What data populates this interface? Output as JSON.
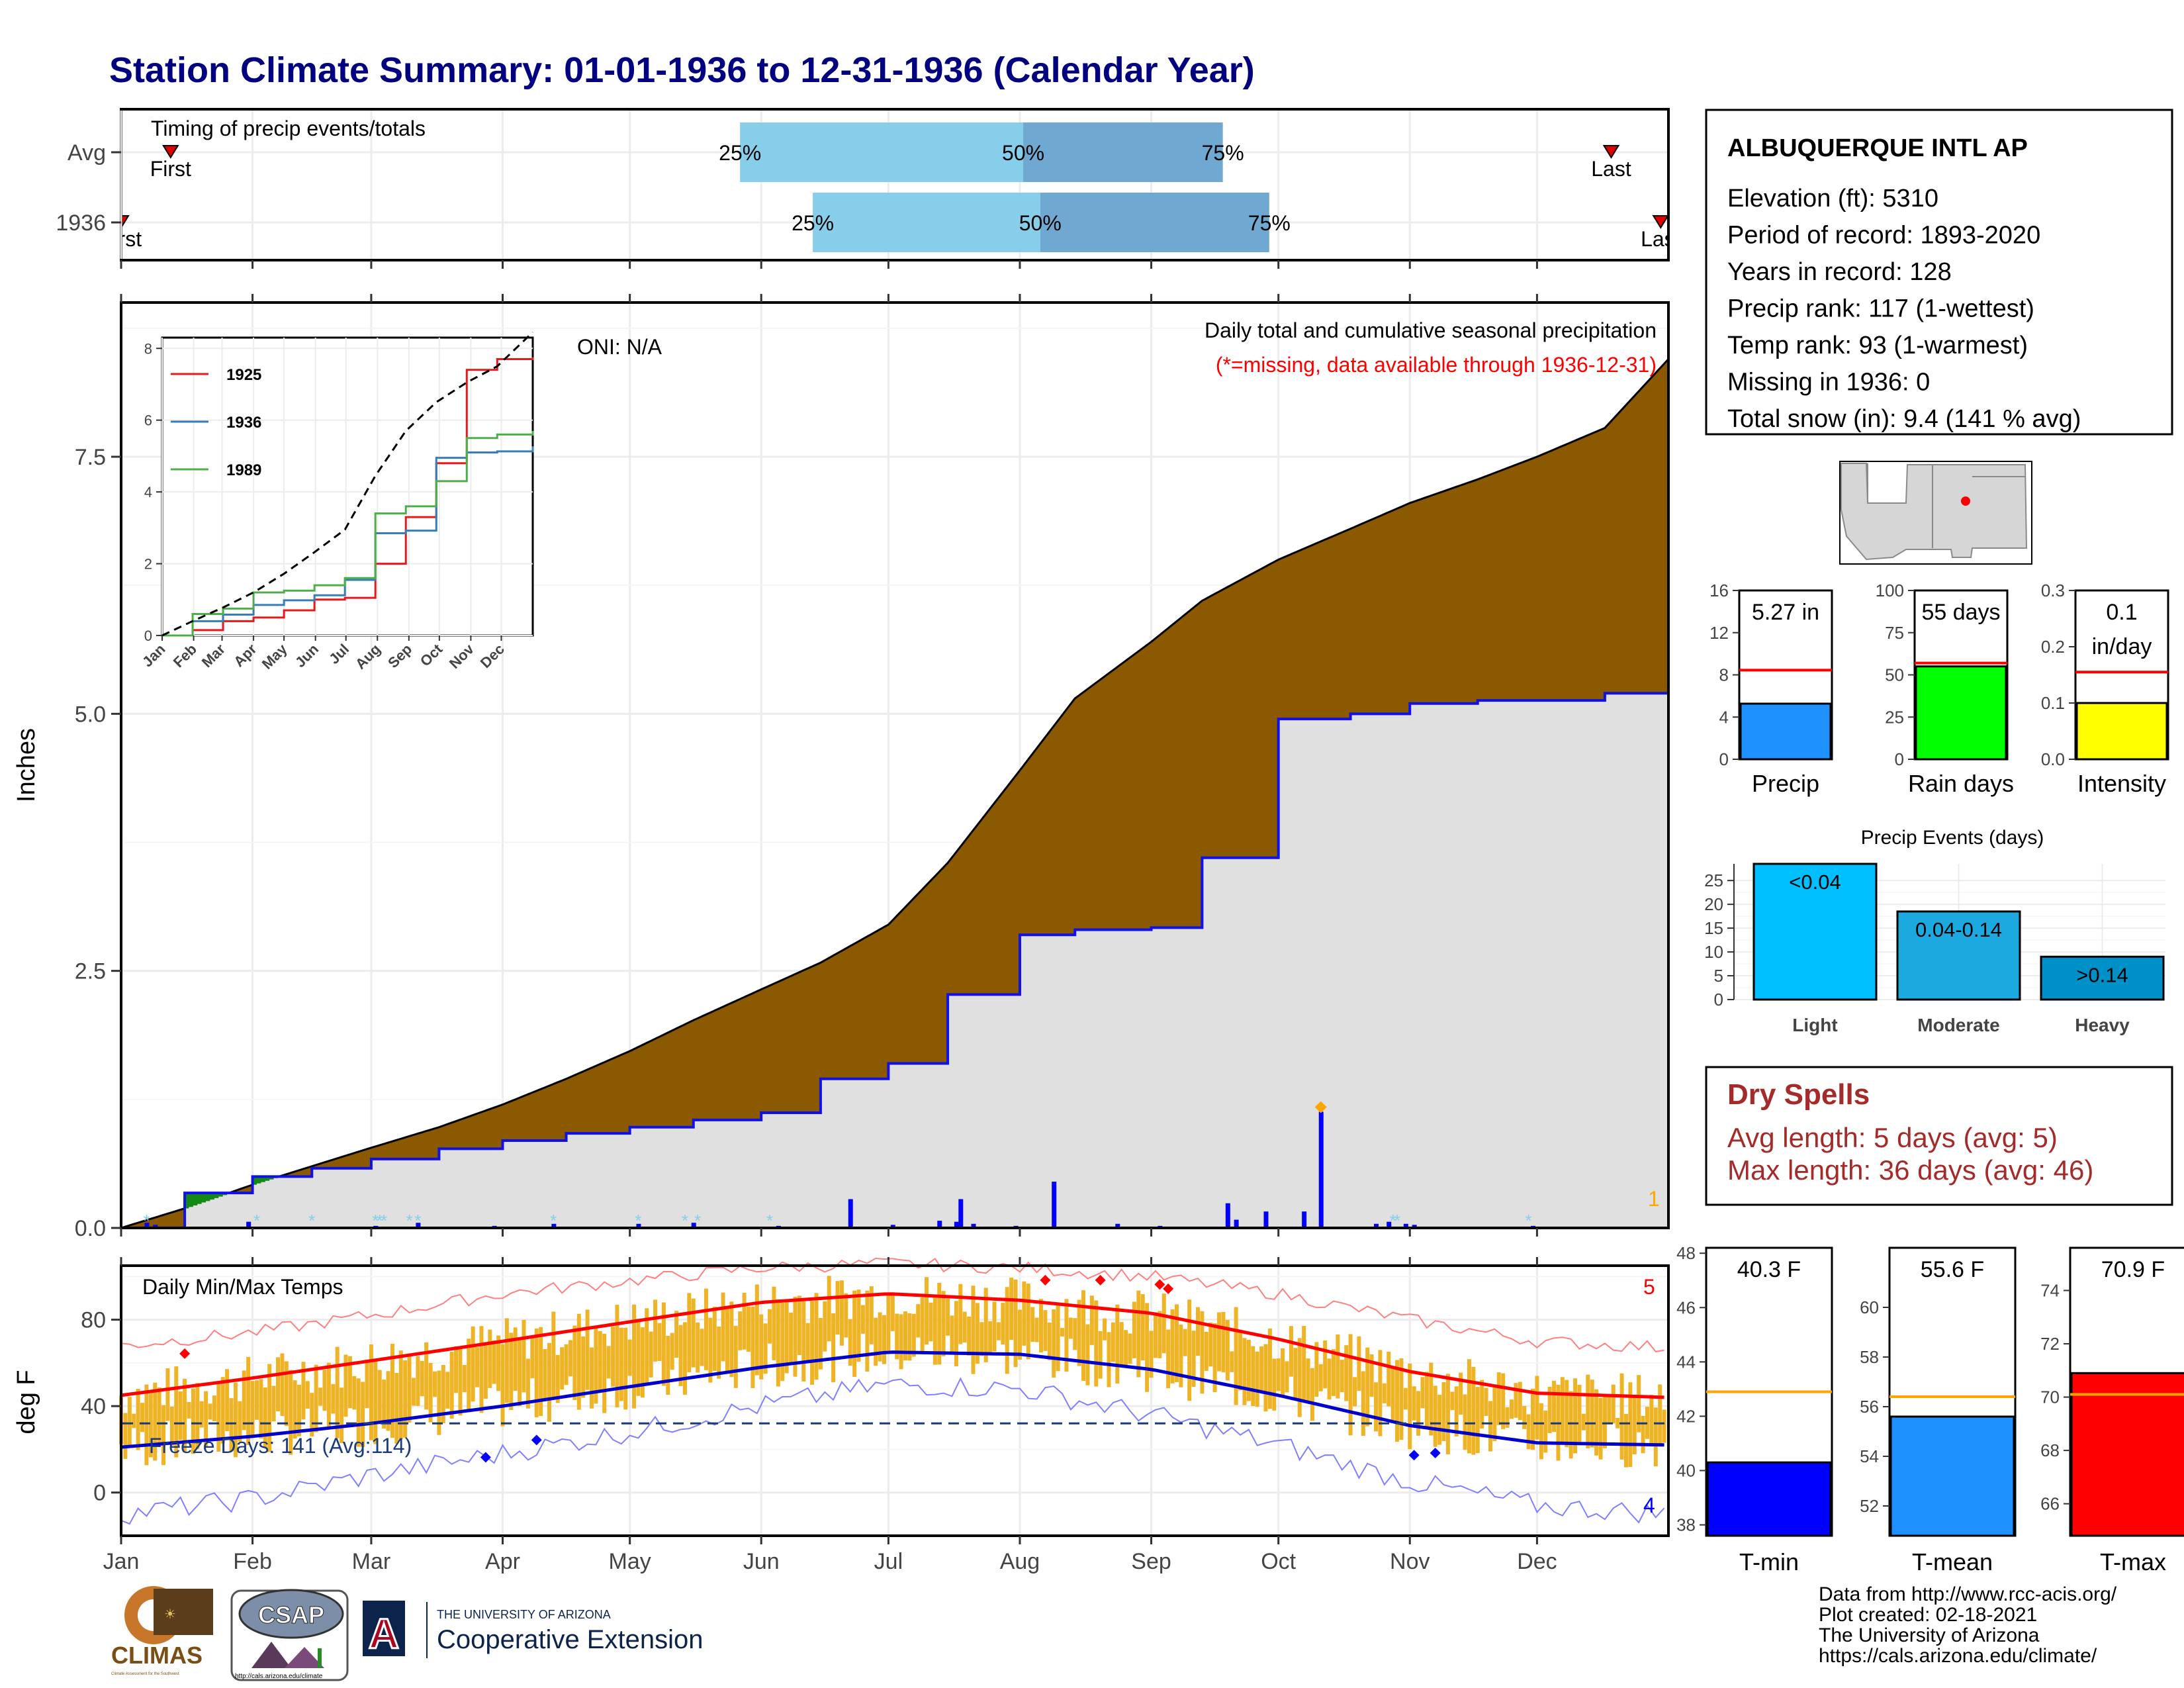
{
  "title": "Station Climate Summary: 01-01-1936 to 12-31-1936 (Calendar Year)",
  "colors": {
    "title": "#000080",
    "cum": "#8B5A00",
    "normal": "#e0e0e0",
    "green": "#138a13",
    "line": "#1010e8",
    "dryspell": "#a02828"
  },
  "timing": {
    "label": "Timing of precip events/totals",
    "rows": [
      {
        "name": "Avg",
        "first": 0.032,
        "p25": 0.4,
        "p50": 0.583,
        "p75": 0.712,
        "last": 0.963,
        "first_label": "First",
        "last_label": "Last"
      },
      {
        "name": "1936",
        "first": 0.0,
        "p25": 0.447,
        "p50": 0.594,
        "p75": 0.742,
        "last": 0.995,
        "first_label": "First",
        "last_label": "Last"
      }
    ],
    "pct_labels": [
      "25%",
      "50%",
      "75%"
    ]
  },
  "months": [
    "Jan",
    "Feb",
    "Mar",
    "Apr",
    "May",
    "Jun",
    "Jul",
    "Aug",
    "Sep",
    "Oct",
    "Nov",
    "Dec"
  ],
  "precip_panel": {
    "ylabel": "Inches",
    "yticks": [
      "0.0",
      "2.5",
      "5.0",
      "7.5"
    ],
    "ylim": [
      0,
      9.0
    ],
    "oni": "ONI: N/A",
    "heading": "Daily total and cumulative seasonal precipitation",
    "missing_note": "(*=missing, data available through 1936-12-31)",
    "corner_count": "1"
  },
  "chart_data": [
    {
      "type": "area",
      "title": "Daily total and cumulative seasonal precipitation",
      "ylabel": "Inches",
      "x_day": [
        0,
        15,
        31,
        45,
        59,
        75,
        90,
        105,
        120,
        135,
        151,
        165,
        181,
        195,
        212,
        225,
        243,
        255,
        273,
        290,
        304,
        320,
        334,
        350,
        365
      ],
      "series": [
        {
          "name": "normal cumulative",
          "values": [
            0,
            0.19,
            0.42,
            0.6,
            0.78,
            0.98,
            1.2,
            1.45,
            1.72,
            2.02,
            2.32,
            2.58,
            2.95,
            3.55,
            4.45,
            5.15,
            5.7,
            6.1,
            6.5,
            6.8,
            7.05,
            7.28,
            7.5,
            7.78,
            8.45
          ]
        },
        {
          "name": "1936 cumulative",
          "values": [
            0,
            0.34,
            0.5,
            0.58,
            0.67,
            0.77,
            0.85,
            0.92,
            0.98,
            1.05,
            1.12,
            1.45,
            1.6,
            2.27,
            2.85,
            2.9,
            2.92,
            3.6,
            4.95,
            5.0,
            5.1,
            5.13,
            5.13,
            5.2,
            5.27
          ]
        }
      ]
    },
    {
      "type": "line",
      "title": "",
      "series": [
        {
          "name": "1925",
          "x_day": [
            0,
            30,
            60,
            90,
            120,
            150,
            180,
            210,
            240,
            270,
            300,
            330,
            365
          ],
          "values": [
            0,
            0.15,
            0.4,
            0.5,
            0.7,
            1.0,
            1.05,
            2.0,
            3.3,
            4.8,
            7.4,
            7.7,
            7.75
          ]
        },
        {
          "name": "1936",
          "x_day": [
            0,
            30,
            60,
            90,
            120,
            150,
            180,
            210,
            240,
            270,
            300,
            330,
            365
          ],
          "values": [
            0,
            0.4,
            0.58,
            0.85,
            0.98,
            1.12,
            1.55,
            2.85,
            2.92,
            4.95,
            5.1,
            5.13,
            5.27
          ]
        },
        {
          "name": "1989",
          "x_day": [
            0,
            30,
            60,
            90,
            120,
            150,
            180,
            210,
            240,
            270,
            300,
            330,
            365
          ],
          "values": [
            0,
            0.6,
            0.75,
            1.2,
            1.25,
            1.4,
            1.6,
            3.4,
            3.6,
            4.3,
            5.5,
            5.6,
            5.7
          ]
        },
        {
          "name": "avg",
          "x_day": [
            0,
            30,
            60,
            90,
            120,
            150,
            180,
            210,
            240,
            270,
            300,
            330,
            365
          ],
          "values": [
            0,
            0.4,
            0.78,
            1.2,
            1.72,
            2.32,
            2.95,
            4.45,
            5.7,
            6.5,
            7.05,
            7.5,
            8.45
          ]
        }
      ],
      "yticks": [
        "0",
        "2",
        "4",
        "6",
        "8"
      ],
      "ylim": [
        0,
        8.3
      ]
    },
    {
      "type": "bar",
      "title": "",
      "series": [
        {
          "name": "1936 daily precip",
          "x_day": [
            6,
            8,
            30,
            60,
            70,
            88,
            102,
            122,
            135,
            155,
            172,
            182,
            193,
            197,
            198,
            201,
            211,
            220,
            235,
            245,
            261,
            263,
            270,
            279,
            283,
            296,
            299,
            303,
            305,
            333
          ],
          "values": [
            0.05,
            0.03,
            0.06,
            0.02,
            0.05,
            0.02,
            0.04,
            0.04,
            0.05,
            0.02,
            0.28,
            0.03,
            0.07,
            0.06,
            0.28,
            0.04,
            0.02,
            0.45,
            0.04,
            0.02,
            0.24,
            0.08,
            0.16,
            0.16,
            1.13,
            0.04,
            0.06,
            0.04,
            0.03,
            0.02
          ]
        }
      ]
    },
    {
      "type": "line",
      "title": "Daily Min/Max Temps",
      "ylabel": "deg F",
      "yticks": [
        "0",
        "40",
        "80"
      ],
      "ylim": [
        -20,
        105
      ],
      "x_day": [
        0,
        31,
        59,
        90,
        120,
        151,
        181,
        212,
        243,
        273,
        304,
        334,
        365
      ],
      "series": [
        {
          "name": "Normal max",
          "values": [
            45,
            53,
            61,
            70,
            79,
            88,
            92,
            89,
            83,
            71,
            56,
            46,
            44
          ]
        },
        {
          "name": "Normal min",
          "values": [
            21,
            26,
            32,
            40,
            49,
            58,
            65,
            64,
            57,
            45,
            31,
            23,
            22
          ]
        },
        {
          "name": "Record max",
          "values": [
            68,
            74,
            82,
            92,
            98,
            104,
            106,
            104,
            100,
            92,
            80,
            70,
            67
          ]
        },
        {
          "name": "Record min",
          "values": [
            -10,
            -3,
            8,
            18,
            28,
            40,
            50,
            48,
            36,
            22,
            5,
            -6,
            -10
          ]
        }
      ],
      "freeze_days": "Freeze Days: 141 (Avg:114)",
      "freeze_line": 32,
      "record_high_count": "5",
      "record_low_count": "4"
    },
    {
      "type": "bar",
      "title": "",
      "categories": [
        "Precip"
      ],
      "values": [
        5.27
      ],
      "avg": 8.45,
      "ylim": [
        0,
        16
      ],
      "yticks": [
        "0",
        "4",
        "8",
        "12",
        "16"
      ],
      "value_label": "5.27 in",
      "color": "#1e90ff"
    },
    {
      "type": "bar",
      "title": "",
      "categories": [
        "Rain days"
      ],
      "values": [
        55
      ],
      "avg": 57,
      "ylim": [
        0,
        100
      ],
      "yticks": [
        "0",
        "25",
        "50",
        "75",
        "100"
      ],
      "value_label": "55 days",
      "color": "#00ff00"
    },
    {
      "type": "bar",
      "title": "",
      "categories": [
        "Intensity"
      ],
      "values": [
        0.1
      ],
      "avg": 0.155,
      "ylim": [
        0,
        0.3
      ],
      "yticks": [
        "0.0",
        "0.1",
        "0.2",
        "0.3"
      ],
      "value_label": "0.1",
      "value_label2": "in/day",
      "color": "#ffff00"
    },
    {
      "type": "bar",
      "title": "Precip Events (days)",
      "categories": [
        "Light",
        "Moderate",
        "Heavy"
      ],
      "values": [
        28.5,
        18.5,
        9
      ],
      "bar_labels": [
        "<0.04",
        "0.04-0.14",
        ">0.14"
      ],
      "ylim": [
        0,
        28.5
      ],
      "yticks": [
        "0",
        "5",
        "10",
        "15",
        "20",
        "25"
      ],
      "colors": [
        "#00bfff",
        "#1ca9e0",
        "#0090c8"
      ]
    },
    {
      "type": "bar",
      "title": "",
      "categories": [
        "T-min"
      ],
      "values": [
        40.3
      ],
      "avg": 42.9,
      "ylim": [
        37.6,
        48.2
      ],
      "yticks": [
        "38",
        "40",
        "42",
        "44",
        "46",
        "48"
      ],
      "value_label": "40.3 F",
      "color": "#0000ff"
    },
    {
      "type": "bar",
      "title": "",
      "categories": [
        "T-mean"
      ],
      "values": [
        55.6
      ],
      "avg": 56.4,
      "ylim": [
        50.8,
        62.4
      ],
      "yticks": [
        "52",
        "54",
        "56",
        "58",
        "60"
      ],
      "value_label": "55.6 F",
      "color": "#1e90ff"
    },
    {
      "type": "bar",
      "title": "",
      "categories": [
        "T-max"
      ],
      "values": [
        70.9
      ],
      "avg": 70.1,
      "ylim": [
        64.8,
        75.6
      ],
      "yticks": [
        "66",
        "68",
        "70",
        "72",
        "74"
      ],
      "value_label": "70.9 F",
      "color": "#ff0000"
    }
  ],
  "station": {
    "name": "ALBUQUERQUE INTL AP",
    "lines": [
      "Elevation (ft): 5310",
      "Period of record: 1893-2020",
      "Years in record: 128",
      "Precip rank: 117 (1-wettest)",
      "Temp rank: 93 (1-warmest)",
      "Missing in 1936: 0",
      "Total snow (in): 9.4 (141 % avg)"
    ]
  },
  "dry_spells": {
    "title": "Dry Spells",
    "avg": "Avg length: 5 days (avg: 5)",
    "max": "Max length: 36 days (avg: 46)"
  },
  "credits": [
    "Data from http://www.rcc-acis.org/",
    "Plot created: 02-18-2021",
    "The University of Arizona",
    "https://cals.arizona.edu/climate/"
  ],
  "logos": {
    "climas": "CLIMAS",
    "climas_tag": "Climate Assessment for the Southwest",
    "csap": "CSAP",
    "csap_url": "http://cals.arizona.edu/climate",
    "ua_top": "THE UNIVERSITY OF ARIZONA",
    "ua_bottom": "Cooperative Extension",
    "ua_letter": "A"
  }
}
